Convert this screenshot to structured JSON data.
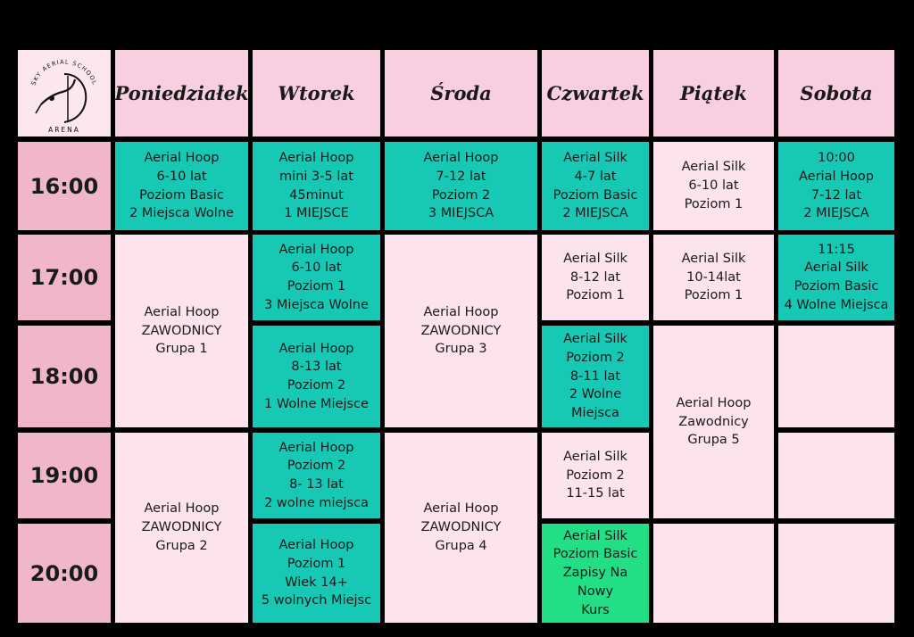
{
  "logo": {
    "arc_text": "SKY AERIAL SCHOOL",
    "name": "ARENA"
  },
  "days": [
    "Poniedziałek",
    "Wtorek",
    "Środa",
    "Czwartek",
    "Piątek",
    "Sobota"
  ],
  "times": [
    "16:00",
    "17:00",
    "18:00",
    "19:00",
    "20:00"
  ],
  "classes": {
    "mon_1600": [
      "Aerial Hoop",
      "6-10 lat",
      "Poziom Basic",
      "2 Miejsca Wolne"
    ],
    "mon_1700": [
      "Aerial Hoop",
      "ZAWODNICY",
      "Grupa 1"
    ],
    "mon_1900": [
      "Aerial Hoop",
      "ZAWODNICY",
      "Grupa 2"
    ],
    "tue_1600": [
      "Aerial Hoop",
      "mini 3-5 lat",
      "45minut",
      "1 MIEJSCE"
    ],
    "tue_1700": [
      "Aerial Hoop",
      "6-10 lat",
      "Poziom 1",
      "3 Miejsca Wolne"
    ],
    "tue_1800": [
      "Aerial Hoop",
      "8-13 lat",
      "Poziom 2",
      "1 Wolne Miejsce"
    ],
    "tue_1900": [
      "Aerial Hoop",
      "Poziom 2",
      "8- 13 lat",
      "2 wolne miejsca"
    ],
    "tue_2000": [
      "Aerial Hoop",
      "Poziom 1",
      "Wiek 14+",
      "5 wolnych Miejsc"
    ],
    "wed_1600": [
      "Aerial Hoop",
      "7-12 lat",
      "Poziom 2",
      "3 MIEJSCA"
    ],
    "wed_1700": [
      "Aerial Hoop",
      "ZAWODNICY",
      "Grupa 3"
    ],
    "wed_1900": [
      "Aerial Hoop",
      "ZAWODNICY",
      "Grupa 4"
    ],
    "thu_1600": [
      "Aerial Silk",
      "4-7 lat",
      "Poziom Basic",
      "2 MIEJSCA"
    ],
    "thu_1700": [
      "Aerial Silk",
      "8-12 lat",
      "Poziom 1"
    ],
    "thu_1800": [
      "Aerial Silk",
      "Poziom 2",
      "8-11 lat",
      "2 Wolne",
      "Miejsca"
    ],
    "thu_1900": [
      "Aerial Silk",
      "Poziom 2",
      "11-15 lat"
    ],
    "thu_2000": [
      "Aerial Silk",
      "Poziom Basic",
      "Zapisy Na",
      "Nowy",
      "Kurs"
    ],
    "fri_1600": [
      "Aerial Silk",
      "6-10 lat",
      "Poziom 1"
    ],
    "fri_1700": [
      "Aerial Silk",
      "10-14lat",
      "Poziom 1"
    ],
    "fri_1800": [
      "Aerial Hoop",
      "Zawodnicy",
      "Grupa 5"
    ],
    "sat_1600": [
      "10:00",
      "Aerial Hoop",
      "7-12 lat",
      "2 MIEJSCA"
    ],
    "sat_1700": [
      "11:15",
      "Aerial Silk",
      "Poziom Basic",
      "4 Wolne Miejsca"
    ]
  },
  "colors": {
    "background": "#000000",
    "header": "#f8cfe0",
    "time": "#f0b6cc",
    "empty": "#fde3ee",
    "teal": "#17c9b4",
    "green": "#22df86"
  }
}
